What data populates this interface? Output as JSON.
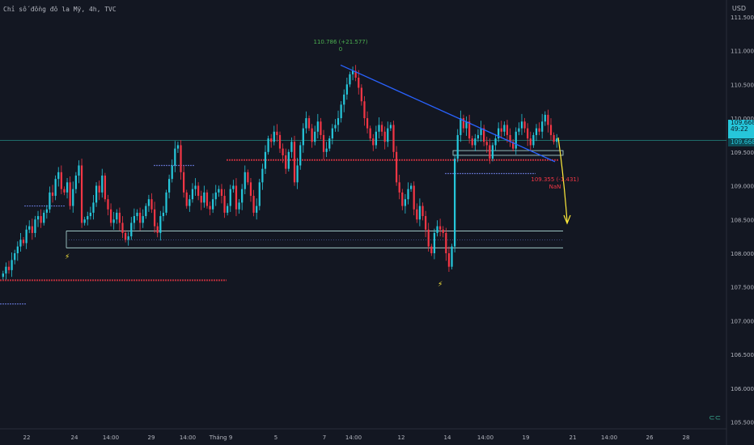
{
  "header": {
    "title": "Chỉ số đồng đô la Mỹ, 4h, TVC"
  },
  "currency": "USD",
  "price_axis": {
    "ticks": [
      "111.500",
      "111.000",
      "110.500",
      "110.000",
      "109.500",
      "109.000",
      "108.500",
      "108.000",
      "107.500",
      "107.000",
      "106.500",
      "106.000",
      "105.500"
    ],
    "current_price": "109.668",
    "countdown": "49:22",
    "secondary_price": "109.668"
  },
  "time_axis": {
    "ticks": [
      "22",
      "24",
      "14:00",
      "29",
      "14:00",
      "Tháng 9",
      "5",
      "7",
      "14:00",
      "12",
      "14",
      "14:00",
      "19",
      "21",
      "14:00",
      "26",
      "28"
    ]
  },
  "annotations": {
    "high_label": "110.786 (+21.577)",
    "high_sub": "0",
    "low_label": "109.355 (-1.431)",
    "low_sub": "NaN"
  },
  "colors": {
    "bg": "#131722",
    "up": "#26c6da",
    "down": "#f23645",
    "trendline": "#2962ff",
    "arrow": "#ffeb3b",
    "green_text": "#4caf50",
    "red_text": "#f23645"
  },
  "chart_data": {
    "type": "candlestick",
    "title": "Chỉ số đồng đô la Mỹ, 4h, TVC",
    "ylim": [
      105.4,
      111.75
    ],
    "grid": false,
    "close_path": [
      107.7,
      107.8,
      107.75,
      107.9,
      108.0,
      108.1,
      108.2,
      108.15,
      108.35,
      108.4,
      108.3,
      108.5,
      108.55,
      108.45,
      108.6,
      108.65,
      108.9,
      108.85,
      109.1,
      109.2,
      108.95,
      108.9,
      109.05,
      108.7,
      108.95,
      109.15,
      109.3,
      108.45,
      108.5,
      108.55,
      108.6,
      108.75,
      109.0,
      108.9,
      109.15,
      108.8,
      108.65,
      108.45,
      108.5,
      108.6,
      108.45,
      108.3,
      108.2,
      108.25,
      108.45,
      108.55,
      108.6,
      108.45,
      108.55,
      108.7,
      108.8,
      108.65,
      108.4,
      108.3,
      108.55,
      108.6,
      108.9,
      109.1,
      109.3,
      109.55,
      109.6,
      109.2,
      108.9,
      108.7,
      108.8,
      108.95,
      109.0,
      108.85,
      108.75,
      108.9,
      108.7,
      108.65,
      108.8,
      108.9,
      108.95,
      108.85,
      108.6,
      108.7,
      108.95,
      109.0,
      108.65,
      108.75,
      108.95,
      109.2,
      109.05,
      108.85,
      108.6,
      108.7,
      109.05,
      109.25,
      109.5,
      109.7,
      109.65,
      109.8,
      109.75,
      109.55,
      109.45,
      109.25,
      109.5,
      109.65,
      109.05,
      109.3,
      109.6,
      109.85,
      110.0,
      109.85,
      109.65,
      109.8,
      109.95,
      109.75,
      109.5,
      109.55,
      109.7,
      109.85,
      109.9,
      110.0,
      110.2,
      110.35,
      110.5,
      110.65,
      110.7,
      110.6,
      110.45,
      110.25,
      110.0,
      109.85,
      109.7,
      109.6,
      109.8,
      109.9,
      109.8,
      109.65,
      109.85,
      109.9,
      109.5,
      109.05,
      108.9,
      108.7,
      108.8,
      108.95,
      109.0,
      108.65,
      108.5,
      108.7,
      108.55,
      108.35,
      108.1,
      108.0,
      108.3,
      108.4,
      108.35,
      108.3,
      108.0,
      107.8,
      108.1,
      109.4,
      109.75,
      110.0,
      109.85,
      109.95,
      109.7,
      109.6,
      109.7,
      109.75,
      109.85,
      109.65,
      109.6,
      109.4,
      109.6,
      109.7,
      109.85,
      109.8,
      109.9,
      109.75,
      109.65,
      109.55,
      109.8,
      109.85,
      109.95,
      109.85,
      109.7,
      109.6,
      109.75,
      109.85,
      109.8,
      109.95,
      110.05,
      109.9,
      109.75,
      109.65,
      109.7
    ],
    "levels": {
      "resistance_red": 109.38,
      "support_red": 107.6,
      "zone_top": 109.52,
      "zone_bottom": 109.45,
      "box_top": 108.33,
      "box_bottom": 108.08,
      "teal_line": 109.67
    },
    "high": 110.786,
    "low_target": 109.355,
    "high_change": "+21.577",
    "low_change": "-1.431"
  }
}
